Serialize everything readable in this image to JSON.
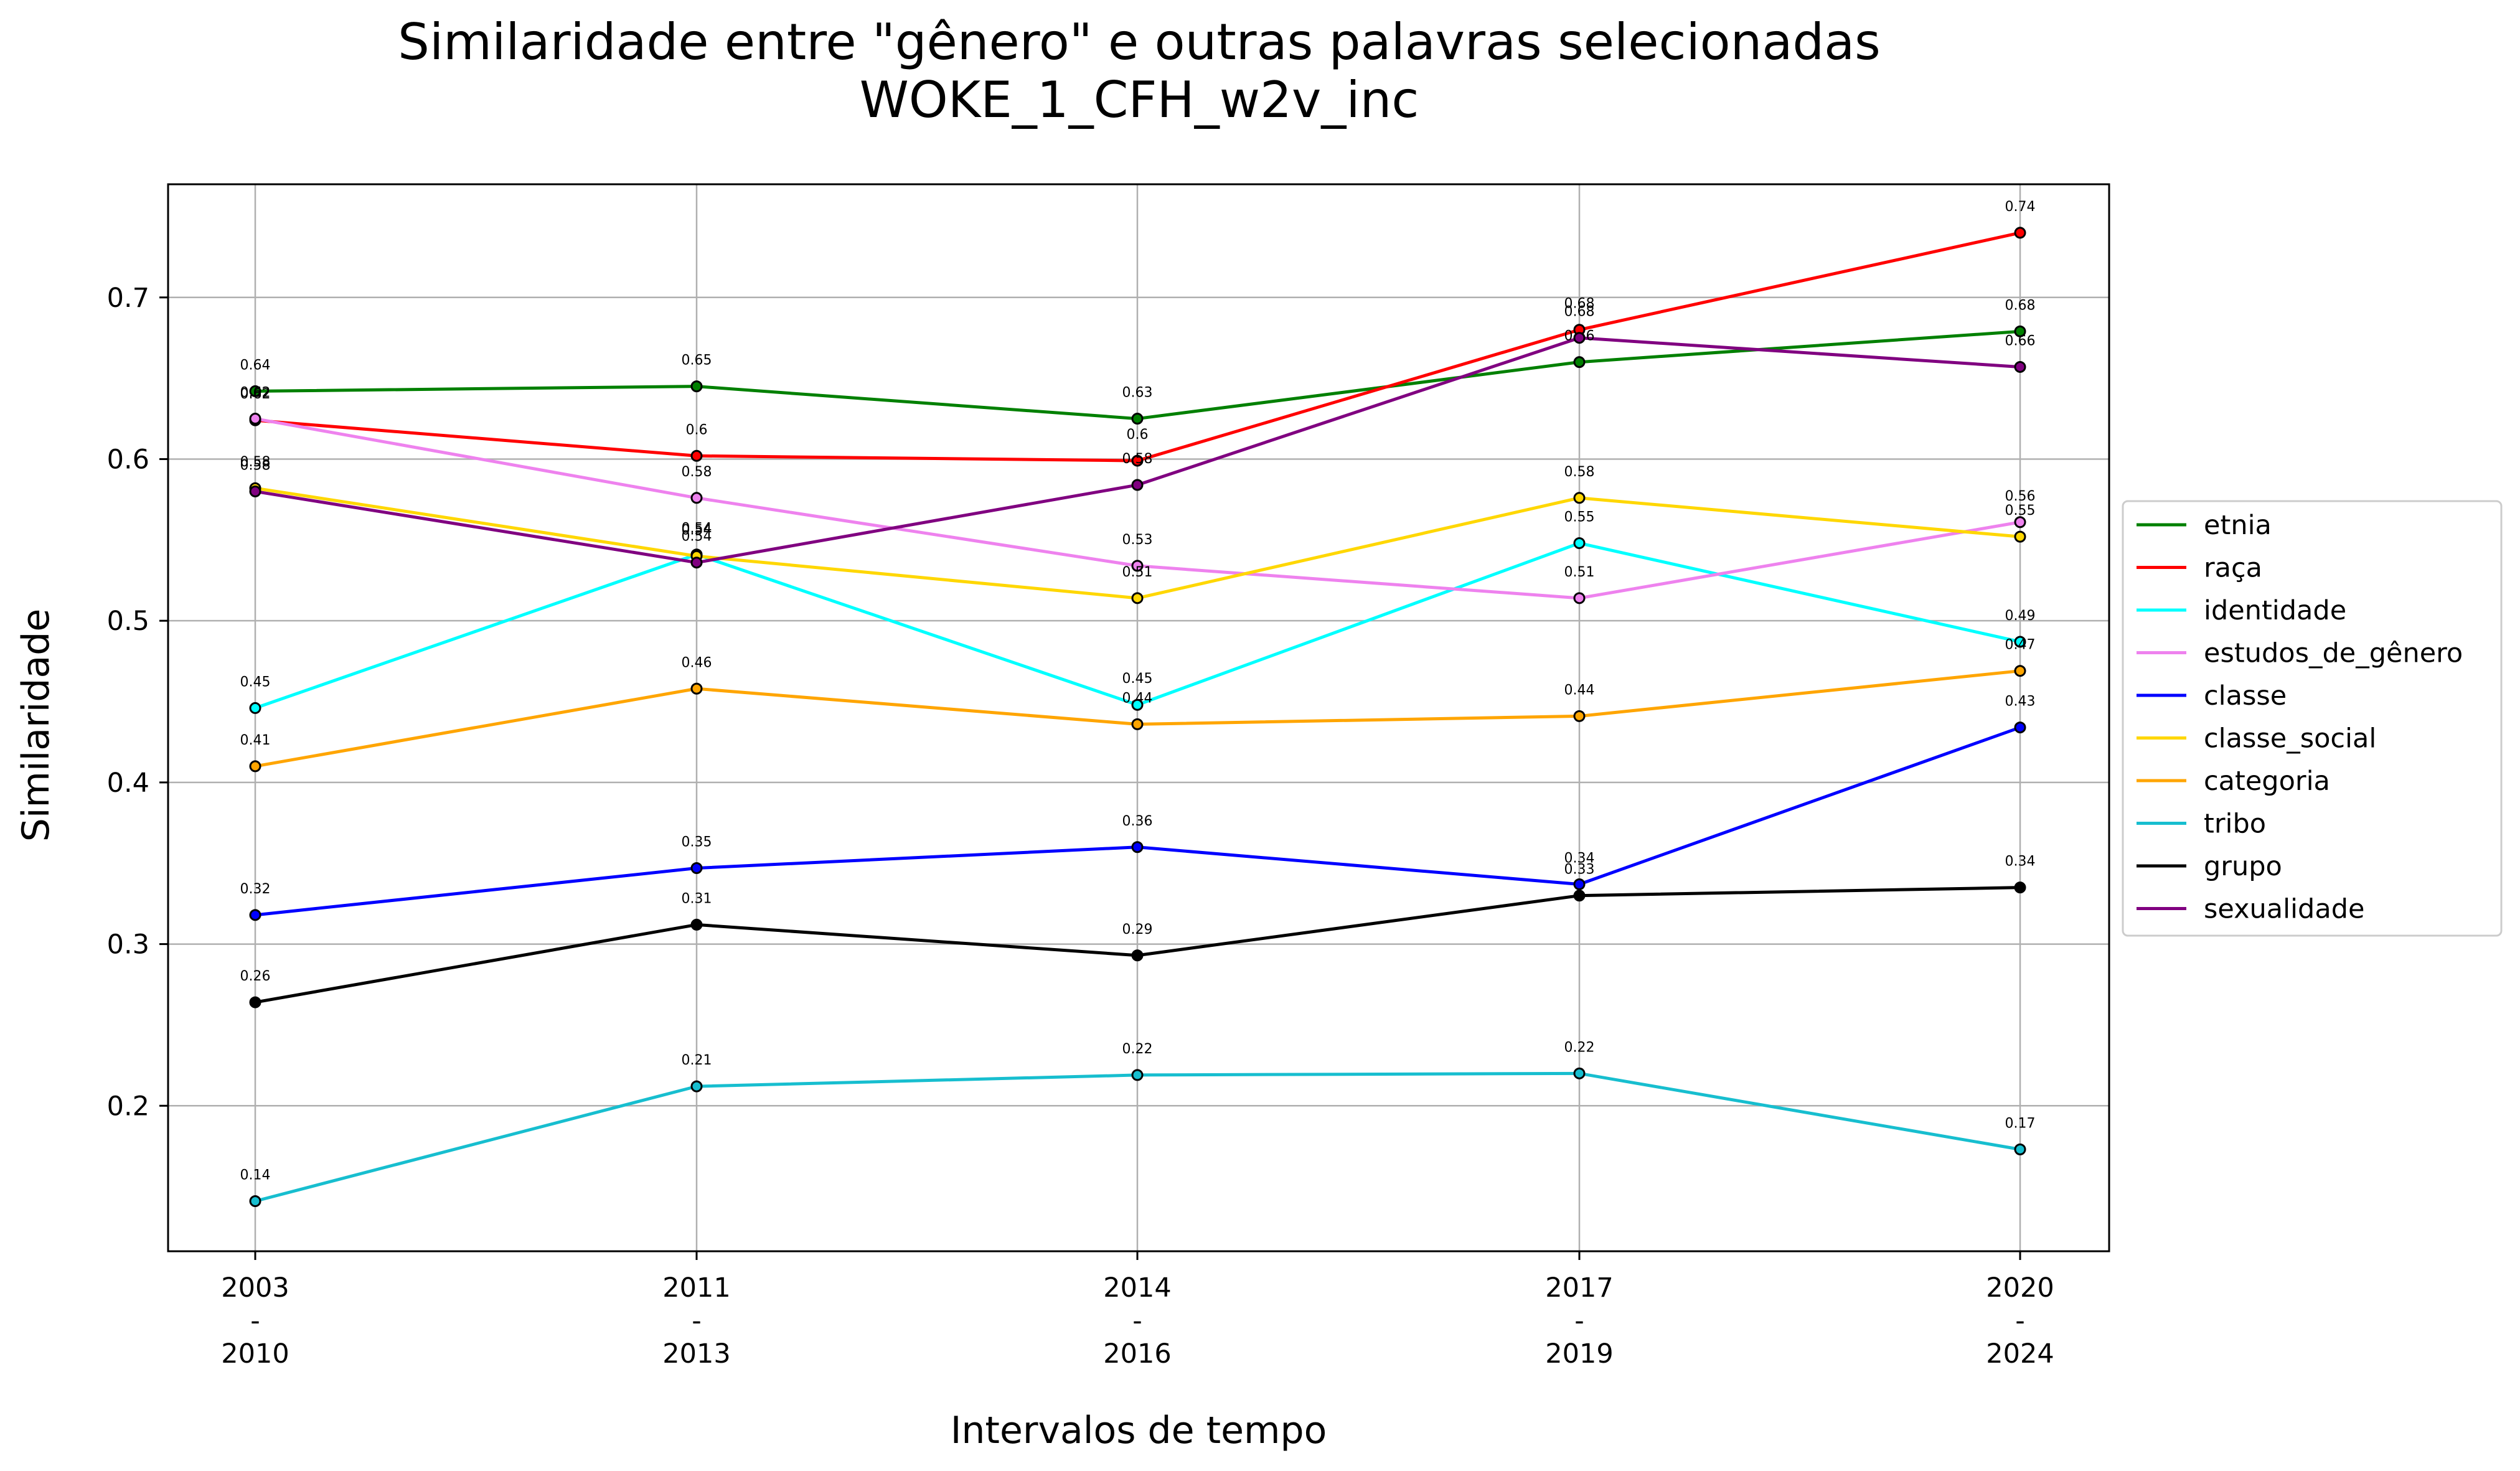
{
  "chart_data": {
    "type": "line",
    "title": "Similaridade entre \"gênero\" e outras palavras selecionadas",
    "subtitle": "WOKE_1_CFH_w2v_inc",
    "xlabel": "Intervalos de tempo",
    "ylabel": "Similaridade",
    "categories": [
      [
        "2003",
        "-",
        "2010"
      ],
      [
        "2011",
        "-",
        "2013"
      ],
      [
        "2014",
        "-",
        "2016"
      ],
      [
        "2017",
        "-",
        "2019"
      ],
      [
        "2020",
        "-",
        "2024"
      ]
    ],
    "ylim": [
      0.11,
      0.77
    ],
    "yticks": [
      "0.2",
      "0.3",
      "0.4",
      "0.5",
      "0.6",
      "0.7"
    ],
    "grid": true,
    "legend_position": "right",
    "series": [
      {
        "name": "etnia",
        "color": "#008000",
        "values": [
          0.642,
          0.645,
          0.625,
          0.66,
          0.679
        ],
        "labels": [
          "0.64",
          "0.65",
          "0.63",
          "0.66",
          "0.68"
        ]
      },
      {
        "name": "raça",
        "color": "#ff0000",
        "values": [
          0.624,
          0.602,
          0.599,
          0.68,
          0.74
        ],
        "labels": [
          "0.62",
          "0.6",
          "0.6",
          "0.68",
          "0.74"
        ]
      },
      {
        "name": "identidade",
        "color": "#00ffff",
        "values": [
          0.446,
          0.541,
          0.448,
          0.548,
          0.487
        ],
        "labels": [
          "0.45",
          "0.54",
          "0.45",
          "0.55",
          "0.49"
        ]
      },
      {
        "name": "estudos_de_gênero",
        "color": "#ee82ee",
        "values": [
          0.625,
          0.576,
          0.534,
          0.514,
          0.561
        ],
        "labels": [
          "0.62",
          "0.58",
          "0.53",
          "0.51",
          "0.56"
        ]
      },
      {
        "name": "classe",
        "color": "#0000ff",
        "values": [
          0.318,
          0.347,
          0.36,
          0.337,
          0.434
        ],
        "labels": [
          "0.32",
          "0.35",
          "0.36",
          "0.34",
          "0.43"
        ]
      },
      {
        "name": "classe_social",
        "color": "#ffd700",
        "values": [
          0.582,
          0.54,
          0.514,
          0.576,
          0.552
        ],
        "labels": [
          "0.58",
          "0.54",
          "0.51",
          "0.58",
          "0.55"
        ]
      },
      {
        "name": "categoria",
        "color": "#ffa500",
        "values": [
          0.41,
          0.458,
          0.436,
          0.441,
          0.469
        ],
        "labels": [
          "0.41",
          "0.46",
          "0.44",
          "0.44",
          "0.47"
        ]
      },
      {
        "name": "tribo",
        "color": "#17becf",
        "values": [
          0.141,
          0.212,
          0.219,
          0.22,
          0.173
        ],
        "labels": [
          "0.14",
          "0.21",
          "0.22",
          "0.22",
          "0.17"
        ]
      },
      {
        "name": "grupo",
        "color": "#000000",
        "values": [
          0.264,
          0.312,
          0.293,
          0.33,
          0.335
        ],
        "labels": [
          "0.26",
          "0.31",
          "0.29",
          "0.33",
          "0.34"
        ]
      },
      {
        "name": "sexualidade",
        "color": "#800080",
        "values": [
          0.58,
          0.536,
          0.584,
          0.675,
          0.657
        ],
        "labels": [
          "0.58",
          "0.54",
          "0.58",
          "0.68",
          "0.66"
        ]
      }
    ]
  }
}
